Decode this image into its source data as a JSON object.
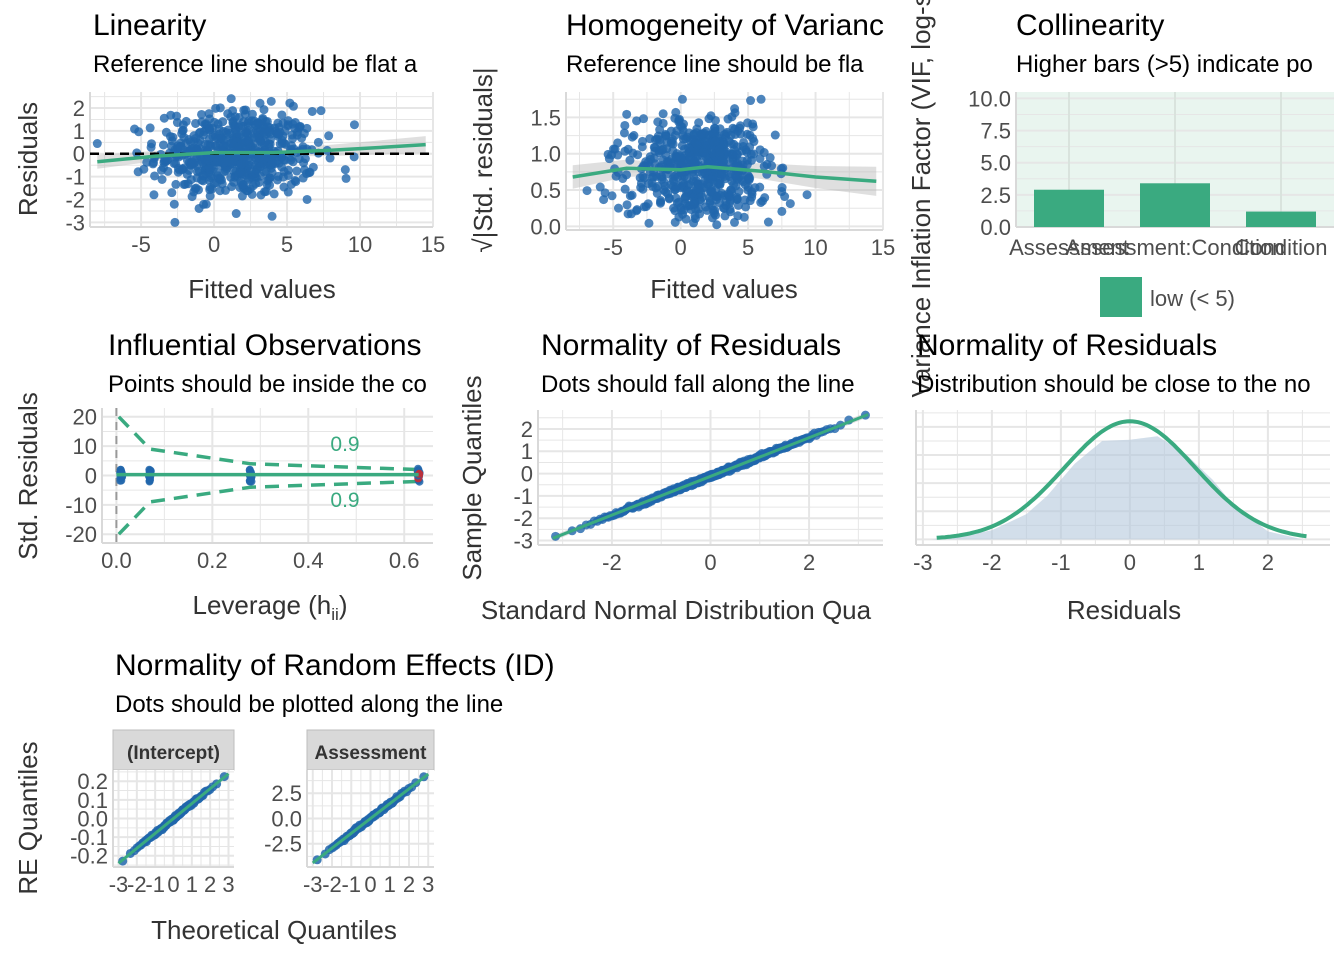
{
  "colors": {
    "points": "#2166ac",
    "fit_line": "#3aaa80",
    "ref_line": "#000000",
    "ci_band": "#b8b8b8",
    "panel_bg": "#ffffff",
    "grid": "#e6e6e6",
    "vif_low": "#3aaa80",
    "vif_bg_low": "#e9f5ef",
    "density_fill": "#b4c8dc",
    "strip_bg": "#d9d9d9",
    "influential": "#d62728"
  },
  "chart_data": [
    {
      "id": "linearity",
      "type": "scatter",
      "title": "Linearity",
      "subtitle": "Reference line should be flat a",
      "xlabel": "Fitted values",
      "ylabel": "Residuals",
      "xlim": [
        -8.5,
        15
      ],
      "ylim": [
        -3.2,
        2.7
      ],
      "xticks": [
        -5,
        0,
        5,
        10,
        15
      ],
      "yticks": [
        -3,
        -2,
        -1,
        0,
        1,
        2
      ],
      "x_center": 1.5,
      "x_sd": 2.7,
      "y_sd": 0.95,
      "n_points": 600,
      "reference_line": 0,
      "smooth": {
        "x": [
          -8,
          -4,
          0,
          4,
          8,
          12,
          14.5
        ],
        "y": [
          -0.35,
          -0.1,
          0.05,
          0.05,
          0.15,
          0.3,
          0.4
        ]
      }
    },
    {
      "id": "homogeneity",
      "type": "scatter",
      "title": "Homogeneity of Varianc",
      "subtitle": "Reference line should be fla",
      "xlabel": "Fitted values",
      "ylabel": "√|Std. residuals|",
      "xlim": [
        -8.5,
        15
      ],
      "ylim": [
        -0.05,
        1.85
      ],
      "xticks": [
        -5,
        0,
        5,
        10,
        15
      ],
      "yticks": [
        0.0,
        0.5,
        1.0,
        1.5
      ],
      "ytick_labels": [
        "0.0",
        "0.5",
        "1.0",
        "1.5"
      ],
      "x_center": 1.5,
      "x_sd": 2.7,
      "n_points": 600,
      "smooth": {
        "x": [
          -8,
          -4,
          0,
          2,
          6,
          10,
          14.5
        ],
        "y": [
          0.68,
          0.8,
          0.78,
          0.82,
          0.76,
          0.68,
          0.62
        ]
      }
    },
    {
      "id": "collinearity",
      "type": "bar",
      "title": "Collinearity",
      "subtitle": "Higher bars (>5) indicate po",
      "xlabel": "",
      "ylabel": "Variance Inflation Factor (VIF, log-scaled)",
      "categories": [
        "Assessment",
        "Assessment:Condition",
        "Condition"
      ],
      "values": [
        2.9,
        3.4,
        1.2
      ],
      "ylim": [
        0,
        10.5
      ],
      "yticks": [
        0.0,
        2.5,
        5.0,
        7.5,
        10.0
      ],
      "ytick_labels": [
        "0.0",
        "2.5",
        "5.0",
        "7.5",
        "10.0"
      ],
      "legend": {
        "label": "low (< 5)",
        "position": "bottom"
      }
    },
    {
      "id": "influential",
      "type": "scatter",
      "title": "Influential Observations",
      "subtitle": "Points should be inside the co",
      "xlabel": "Leverage (h",
      "xlabel_sub": "ii",
      "xlabel_end": ")",
      "ylabel": "Std. Residuals",
      "xlim": [
        -0.03,
        0.66
      ],
      "ylim": [
        -23,
        23
      ],
      "xticks": [
        0.0,
        0.2,
        0.4,
        0.6
      ],
      "xtick_labels": [
        "0.0",
        "0.2",
        "0.4",
        "0.6"
      ],
      "yticks": [
        -20,
        -10,
        0,
        10,
        20
      ],
      "leverage_groups": [
        0.01,
        0.07,
        0.28,
        0.63
      ],
      "cook_label_top": "0.9",
      "cook_label_bottom": "0.9",
      "cook_contour": {
        "x": [
          0.005,
          0.07,
          0.28,
          0.63
        ],
        "y": [
          20,
          9,
          4,
          2
        ]
      }
    },
    {
      "id": "qq_residuals",
      "type": "scatter",
      "title": "Normality of Residuals",
      "subtitle": "Dots should fall along the line",
      "xlabel": "Standard Normal Distribution Qua",
      "ylabel": "Sample Quantiles",
      "xlim": [
        -3.5,
        3.5
      ],
      "ylim": [
        -3.2,
        2.85
      ],
      "xticks": [
        -2,
        0,
        2
      ],
      "yticks": [
        -3,
        -2,
        -1,
        0,
        1,
        2
      ],
      "n_points": 600,
      "line": {
        "x": [
          -3.2,
          3.2
        ],
        "y": [
          -2.9,
          2.65
        ]
      }
    },
    {
      "id": "density",
      "type": "area",
      "title": "Normality of Residuals",
      "subtitle": "Distribution should be close to the no",
      "xlabel": "Residuals",
      "ylabel": "",
      "xlim": [
        -3.1,
        2.9
      ],
      "xticks": [
        -3,
        -2,
        -1,
        0,
        1,
        2
      ],
      "mean": 0,
      "sd": 0.95,
      "observed_x": [
        -2.9,
        -2.5,
        -2.0,
        -1.5,
        -1.2,
        -0.8,
        -0.4,
        0.0,
        0.4,
        0.8,
        1.2,
        1.5,
        2.0,
        2.5
      ],
      "observed_y": [
        0.0,
        0.02,
        0.08,
        0.22,
        0.38,
        0.66,
        0.86,
        0.87,
        0.9,
        0.75,
        0.52,
        0.3,
        0.07,
        0.0
      ]
    },
    {
      "id": "random_effects",
      "type": "scatter",
      "title": "Normality of Random Effects (ID)",
      "subtitle": "Dots should be plotted along the line",
      "xlabel": "Theoretical Quantiles",
      "ylabel": "RE Quantiles",
      "xticks": [
        -3,
        -2,
        -1,
        0,
        1,
        2,
        3
      ],
      "facets": [
        {
          "strip": "(Intercept)",
          "ylim": [
            -0.26,
            0.26
          ],
          "yticks": [
            -0.2,
            -0.1,
            0.0,
            0.1,
            0.2
          ],
          "ytick_labels": [
            "-0.2",
            "-0.1",
            "0.0",
            "0.1",
            "0.2"
          ],
          "line": [
            -0.24,
            0.24
          ]
        },
        {
          "strip": "Assessment",
          "ylim": [
            -4.8,
            4.8
          ],
          "yticks": [
            -2.5,
            0.0,
            2.5
          ],
          "ytick_labels": [
            "-2.5",
            "0.0",
            "2.5"
          ],
          "line": [
            -4.4,
            4.4
          ]
        }
      ]
    }
  ]
}
